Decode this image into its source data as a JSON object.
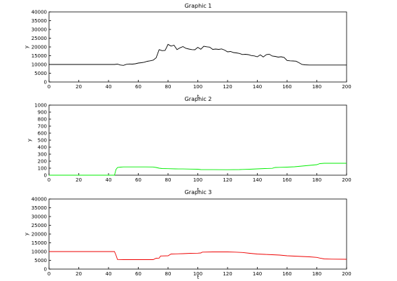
{
  "chart_data": [
    {
      "type": "line",
      "title": "Graphic 1",
      "xlabel": "t",
      "ylabel": "y",
      "xlim": [
        0,
        200
      ],
      "ylim": [
        0,
        40000
      ],
      "x_ticks": [
        0,
        20,
        40,
        60,
        80,
        100,
        120,
        140,
        160,
        180,
        200
      ],
      "y_ticks": [
        0,
        5000,
        10000,
        15000,
        20000,
        25000,
        30000,
        35000,
        40000
      ],
      "grid": false,
      "legend": "none",
      "series": [
        {
          "color": "#000000",
          "x": [
            0,
            44,
            46,
            48,
            50,
            52,
            54,
            56,
            58,
            60,
            62,
            64,
            66,
            68,
            70,
            72,
            74,
            76,
            78,
            80,
            82,
            84,
            86,
            88,
            90,
            92,
            94,
            96,
            98,
            100,
            102,
            104,
            106,
            108,
            110,
            112,
            114,
            116,
            118,
            120,
            122,
            124,
            126,
            128,
            130,
            132,
            134,
            136,
            138,
            140,
            142,
            144,
            146,
            148,
            150,
            152,
            154,
            156,
            158,
            160,
            162,
            164,
            166,
            168,
            170,
            172,
            175,
            200
          ],
          "y": [
            10000,
            10000,
            10200,
            9700,
            9500,
            10100,
            10300,
            10200,
            10400,
            10800,
            11000,
            11300,
            11800,
            12100,
            12500,
            13800,
            18500,
            17900,
            18000,
            21500,
            20500,
            21000,
            18500,
            19500,
            20200,
            19200,
            18800,
            18500,
            18400,
            19800,
            18700,
            20400,
            20100,
            19900,
            18600,
            18800,
            18600,
            18900,
            18200,
            17200,
            17400,
            16800,
            16600,
            16300,
            15700,
            15800,
            15600,
            15100,
            14900,
            14400,
            15500,
            14300,
            15600,
            15900,
            14800,
            14600,
            14200,
            14400,
            14000,
            12300,
            12100,
            12000,
            11900,
            11000,
            10000,
            9800,
            9700,
            9700
          ]
        }
      ]
    },
    {
      "type": "line",
      "title": "Graphic 2",
      "xlabel": "t",
      "ylabel": "y",
      "xlim": [
        0,
        200
      ],
      "ylim": [
        0,
        1000
      ],
      "x_ticks": [
        0,
        20,
        40,
        60,
        80,
        100,
        120,
        140,
        160,
        180,
        200
      ],
      "y_ticks": [
        0,
        100,
        200,
        300,
        400,
        500,
        600,
        700,
        800,
        900,
        1000
      ],
      "grid": false,
      "legend": "none",
      "series": [
        {
          "color": "#00ee00",
          "x": [
            0,
            44,
            45,
            46,
            48,
            50,
            55,
            60,
            65,
            70,
            72,
            74,
            76,
            80,
            85,
            90,
            95,
            100,
            102,
            110,
            120,
            128,
            130,
            135,
            140,
            145,
            150,
            152,
            155,
            160,
            165,
            170,
            175,
            180,
            182,
            185,
            190,
            200
          ],
          "y": [
            0,
            0,
            80,
            110,
            115,
            118,
            118,
            118,
            118,
            117,
            110,
            100,
            95,
            93,
            90,
            89,
            87,
            85,
            80,
            79,
            78,
            80,
            82,
            85,
            90,
            95,
            98,
            110,
            112,
            115,
            120,
            130,
            140,
            150,
            165,
            170,
            170,
            170
          ]
        }
      ]
    },
    {
      "type": "line",
      "title": "Graphic 3",
      "xlabel": "t",
      "ylabel": "y",
      "xlim": [
        0,
        200
      ],
      "ylim": [
        0,
        40000
      ],
      "x_ticks": [
        0,
        20,
        40,
        60,
        80,
        100,
        120,
        140,
        160,
        180,
        200
      ],
      "y_ticks": [
        0,
        5000,
        10000,
        15000,
        20000,
        25000,
        30000,
        35000,
        40000
      ],
      "grid": false,
      "legend": "none",
      "series": [
        {
          "color": "#ee0000",
          "x": [
            0,
            44,
            45,
            46,
            50,
            60,
            70,
            72,
            74,
            75,
            80,
            82,
            85,
            90,
            95,
            100,
            102,
            103,
            110,
            120,
            125,
            130,
            135,
            140,
            145,
            150,
            155,
            160,
            165,
            170,
            175,
            180,
            182,
            185,
            190,
            200
          ],
          "y": [
            10000,
            10000,
            8000,
            5500,
            5400,
            5400,
            5400,
            6200,
            6300,
            7500,
            7600,
            8600,
            8700,
            8800,
            9000,
            9100,
            9200,
            9700,
            9800,
            9800,
            9700,
            9500,
            9000,
            8600,
            8400,
            8200,
            8000,
            7600,
            7400,
            7200,
            7000,
            6700,
            6300,
            5800,
            5700,
            5600
          ]
        }
      ]
    }
  ]
}
